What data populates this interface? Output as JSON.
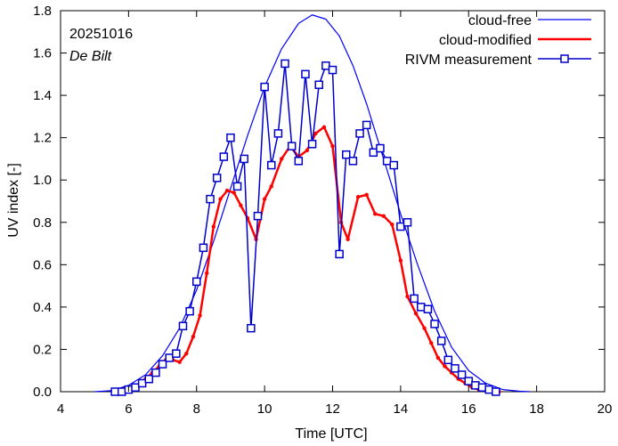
{
  "chart_data": {
    "type": "line",
    "xlabel": "Time  [UTC]",
    "ylabel": "UV index  [-]",
    "xlim": [
      4,
      20
    ],
    "ylim": [
      0,
      1.8
    ],
    "xticks": [
      4,
      6,
      8,
      10,
      12,
      14,
      16,
      18,
      20
    ],
    "yticks": [
      0.0,
      0.2,
      0.4,
      0.6,
      0.8,
      1.0,
      1.2,
      1.4,
      1.6,
      1.8
    ],
    "annotations": {
      "date": "20251016",
      "location": "De Bilt"
    },
    "legend_position": "top-right",
    "series": [
      {
        "name": "cloud-free",
        "color": "#0000ff",
        "marker": "none",
        "x": [
          5.0,
          5.5,
          6.0,
          6.5,
          7.0,
          7.5,
          8.0,
          8.5,
          9.0,
          9.5,
          10.0,
          10.5,
          11.0,
          11.4,
          11.8,
          12.2,
          12.6,
          13.0,
          13.5,
          14.0,
          14.5,
          15.0,
          15.5,
          16.0,
          16.5,
          17.0,
          17.5,
          17.8
        ],
        "y": [
          0.0,
          0.005,
          0.03,
          0.08,
          0.17,
          0.3,
          0.48,
          0.71,
          0.96,
          1.21,
          1.44,
          1.62,
          1.74,
          1.78,
          1.76,
          1.68,
          1.54,
          1.36,
          1.1,
          0.84,
          0.6,
          0.38,
          0.21,
          0.1,
          0.04,
          0.01,
          0.002,
          0.0
        ]
      },
      {
        "name": "cloud-modified",
        "color": "#ff0000",
        "marker": "dot",
        "x": [
          5.7,
          5.9,
          6.1,
          6.3,
          6.5,
          6.7,
          6.9,
          7.1,
          7.3,
          7.5,
          7.7,
          7.9,
          8.1,
          8.3,
          8.5,
          8.7,
          8.9,
          9.1,
          9.3,
          9.5,
          9.75,
          10.0,
          10.2,
          10.5,
          10.75,
          11.0,
          11.25,
          11.5,
          11.75,
          12.0,
          12.25,
          12.45,
          12.75,
          13.0,
          13.25,
          13.5,
          13.75,
          14.0,
          14.2,
          14.45,
          14.7,
          14.9,
          15.1,
          15.3,
          15.5,
          15.7,
          15.9,
          16.1,
          16.3,
          16.5,
          16.7,
          16.9
        ],
        "y": [
          0.0,
          0.005,
          0.01,
          0.03,
          0.06,
          0.09,
          0.12,
          0.15,
          0.15,
          0.14,
          0.18,
          0.26,
          0.36,
          0.56,
          0.78,
          0.91,
          0.95,
          0.94,
          0.88,
          0.82,
          0.72,
          0.91,
          0.97,
          1.1,
          1.16,
          1.11,
          1.14,
          1.22,
          1.25,
          1.16,
          0.8,
          0.72,
          0.92,
          0.93,
          0.84,
          0.83,
          0.79,
          0.62,
          0.45,
          0.37,
          0.3,
          0.23,
          0.16,
          0.12,
          0.09,
          0.06,
          0.04,
          0.02,
          0.01,
          0.005,
          0.002,
          0.0
        ]
      },
      {
        "name": "RIVM measurement",
        "color": "#0000cc",
        "marker": "open-square",
        "x": [
          5.6,
          5.8,
          6.0,
          6.2,
          6.4,
          6.6,
          6.8,
          7.0,
          7.2,
          7.4,
          7.6,
          7.8,
          8.0,
          8.2,
          8.4,
          8.6,
          8.8,
          9.0,
          9.2,
          9.4,
          9.6,
          9.8,
          10.0,
          10.2,
          10.4,
          10.6,
          10.8,
          11.0,
          11.2,
          11.4,
          11.6,
          11.8,
          12.0,
          12.2,
          12.4,
          12.6,
          12.8,
          13.0,
          13.2,
          13.4,
          13.6,
          13.8,
          14.0,
          14.2,
          14.4,
          14.6,
          14.8,
          15.0,
          15.2,
          15.4,
          15.6,
          15.8,
          16.0,
          16.2,
          16.4,
          16.6,
          16.8
        ],
        "y": [
          0.0,
          0.0,
          0.01,
          0.02,
          0.04,
          0.06,
          0.09,
          0.13,
          0.16,
          0.18,
          0.31,
          0.38,
          0.52,
          0.68,
          0.91,
          1.01,
          1.11,
          1.2,
          0.97,
          1.1,
          0.3,
          0.83,
          1.44,
          1.07,
          1.22,
          1.55,
          1.16,
          1.09,
          1.5,
          1.17,
          1.45,
          1.54,
          1.52,
          0.65,
          1.12,
          1.09,
          1.22,
          1.26,
          1.13,
          1.15,
          1.09,
          1.07,
          0.78,
          0.8,
          0.44,
          0.4,
          0.39,
          0.32,
          0.24,
          0.15,
          0.11,
          0.08,
          0.05,
          0.03,
          0.02,
          0.01,
          0.0
        ]
      }
    ]
  }
}
